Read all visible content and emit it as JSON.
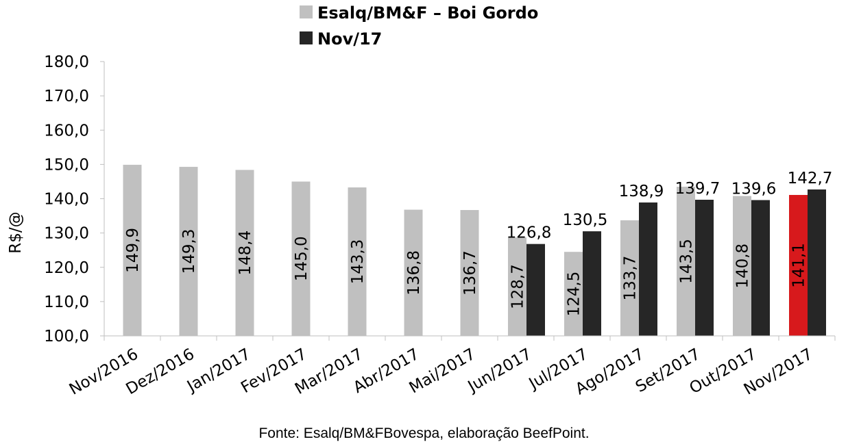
{
  "legend": [
    {
      "label": "Esalq/BM&F – Boi Gordo",
      "color": "#c0c0c0"
    },
    {
      "label": "Nov/17",
      "color": "#262626"
    }
  ],
  "source_text": "Fonte: Esalq/BM&FBovespa, elaboração BeefPoint.",
  "chart_data": {
    "type": "bar",
    "title": "",
    "xlabel": "",
    "ylabel": "R$/@",
    "ylim": [
      100,
      180
    ],
    "yticks": [
      "100,0",
      "110,0",
      "120,0",
      "130,0",
      "140,0",
      "150,0",
      "160,0",
      "170,0",
      "180,0"
    ],
    "grid": false,
    "legend_position": "top-center",
    "categories": [
      "Nov/2016",
      "Dez/2016",
      "Jan/2017",
      "Fev/2017",
      "Mar/2017",
      "Abr/2017",
      "Mai/2017",
      "Jun/2017",
      "Jul/2017",
      "Ago/2017",
      "Set/2017",
      "Out/2017",
      "Nov/2017"
    ],
    "series": [
      {
        "name": "Esalq/BM&F – Boi Gordo",
        "color": "#c0c0c0",
        "highlight": {
          "index": 12,
          "color": "#d7191c"
        },
        "values": [
          149.9,
          149.3,
          148.4,
          145.0,
          143.3,
          136.8,
          136.7,
          128.7,
          124.5,
          133.7,
          143.5,
          140.8,
          141.1
        ],
        "labels": [
          "149,9",
          "149,3",
          "148,4",
          "145,0",
          "143,3",
          "136,8",
          "136,7",
          "128,7",
          "124,5",
          "133,7",
          "143,5",
          "140,8",
          "141,1"
        ]
      },
      {
        "name": "Nov/17",
        "color": "#262626",
        "values": [
          null,
          null,
          null,
          null,
          null,
          null,
          null,
          126.8,
          130.5,
          138.9,
          139.7,
          139.6,
          142.7
        ],
        "labels": [
          null,
          null,
          null,
          null,
          null,
          null,
          null,
          "126,8",
          "130,5",
          "138,9",
          "139,7",
          "139,6",
          "142,7"
        ]
      }
    ]
  }
}
